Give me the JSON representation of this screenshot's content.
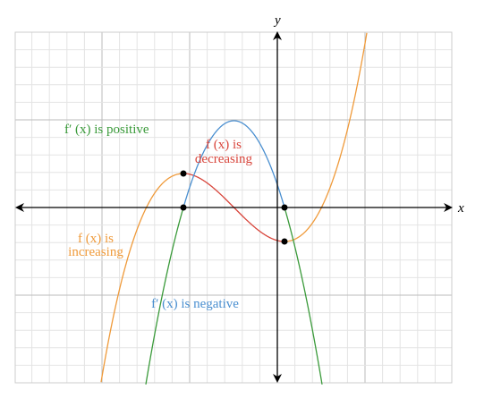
{
  "axes": {
    "x_label": "x",
    "y_label": "y"
  },
  "labels": {
    "derivative_positive": "f′ (x) is positive",
    "derivative_negative": "f′ (x) is negative",
    "decreasing": [
      "f (x) is",
      "decreasing"
    ],
    "increasing": [
      "f (x) is",
      "increasing"
    ]
  }
}
